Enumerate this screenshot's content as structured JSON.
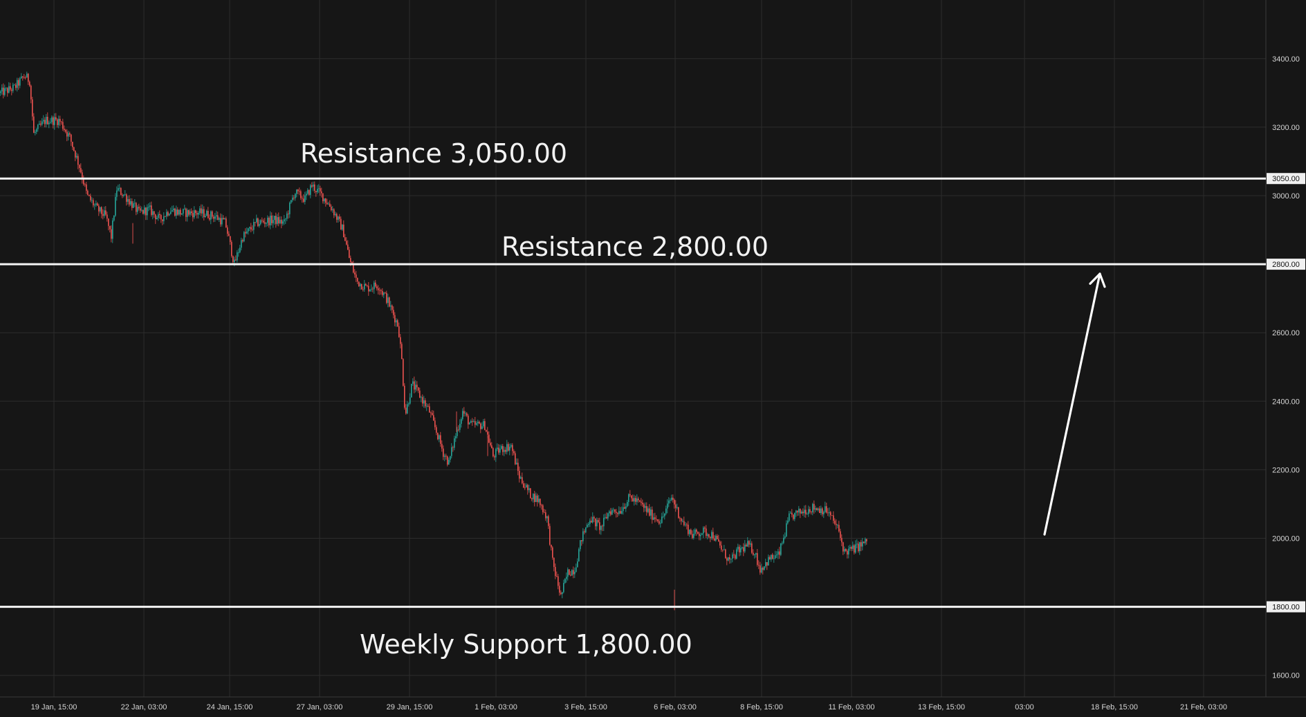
{
  "chart_data": {
    "type": "candlestick",
    "title": "",
    "xlabel": "",
    "ylabel": "",
    "grid": true,
    "ylim": [
      1540,
      3560
    ],
    "y_ticks": [
      "3400.00",
      "3200.00",
      "3000.00",
      "2600.00",
      "2400.00",
      "2200.00",
      "2000.00",
      "1600.00"
    ],
    "x_ticks": [
      "19 Jan, 15:00",
      "22 Jan, 03:00",
      "24 Jan, 15:00",
      "27 Jan, 03:00",
      "29 Jan, 15:00",
      "1 Feb, 03:00",
      "3 Feb, 15:00",
      "6 Feb, 03:00",
      "8 Feb, 15:00",
      "11 Feb, 03:00",
      "13 Feb, 15:00",
      "03:00",
      "18 Feb, 15:00",
      "21 Feb, 03:00"
    ],
    "levels": [
      {
        "value": 3050,
        "badge": "3050.00",
        "label": "Resistance 3,050.00"
      },
      {
        "value": 2800,
        "badge": "2800.00",
        "label": "Resistance 2,800.00"
      },
      {
        "value": 1800,
        "badge": "1800.00",
        "label": "Weekly Support 1,800.00"
      }
    ],
    "price_path": [
      [
        0,
        3300
      ],
      [
        20,
        3315
      ],
      [
        35,
        3350
      ],
      [
        42,
        3335
      ],
      [
        48,
        3180
      ],
      [
        65,
        3220
      ],
      [
        85,
        3220
      ],
      [
        100,
        3170
      ],
      [
        115,
        3080
      ],
      [
        125,
        3000
      ],
      [
        140,
        2960
      ],
      [
        152,
        2940
      ],
      [
        160,
        2880
      ],
      [
        168,
        3020
      ],
      [
        180,
        3000
      ],
      [
        200,
        2950
      ],
      [
        215,
        2960
      ],
      [
        230,
        2930
      ],
      [
        245,
        2960
      ],
      [
        260,
        2950
      ],
      [
        290,
        2950
      ],
      [
        310,
        2940
      ],
      [
        325,
        2920
      ],
      [
        338,
        2800
      ],
      [
        350,
        2880
      ],
      [
        370,
        2920
      ],
      [
        395,
        2930
      ],
      [
        410,
        2920
      ],
      [
        425,
        3010
      ],
      [
        440,
        2990
      ],
      [
        450,
        3030
      ],
      [
        465,
        3000
      ],
      [
        480,
        2960
      ],
      [
        495,
        2900
      ],
      [
        505,
        2810
      ],
      [
        515,
        2750
      ],
      [
        530,
        2730
      ],
      [
        545,
        2740
      ],
      [
        558,
        2700
      ],
      [
        575,
        2620
      ],
      [
        580,
        2520
      ],
      [
        585,
        2360
      ],
      [
        595,
        2450
      ],
      [
        605,
        2420
      ],
      [
        620,
        2370
      ],
      [
        632,
        2300
      ],
      [
        640,
        2250
      ],
      [
        648,
        2220
      ],
      [
        655,
        2280
      ],
      [
        668,
        2370
      ],
      [
        680,
        2330
      ],
      [
        700,
        2330
      ],
      [
        712,
        2240
      ],
      [
        722,
        2260
      ],
      [
        738,
        2270
      ],
      [
        750,
        2180
      ],
      [
        765,
        2130
      ],
      [
        778,
        2110
      ],
      [
        790,
        2060
      ],
      [
        798,
        1930
      ],
      [
        810,
        1830
      ],
      [
        820,
        1900
      ],
      [
        830,
        1910
      ],
      [
        840,
        2000
      ],
      [
        852,
        2060
      ],
      [
        868,
        2030
      ],
      [
        880,
        2080
      ],
      [
        895,
        2080
      ],
      [
        910,
        2120
      ],
      [
        925,
        2100
      ],
      [
        940,
        2070
      ],
      [
        955,
        2050
      ],
      [
        970,
        2120
      ],
      [
        985,
        2050
      ],
      [
        1000,
        2010
      ],
      [
        1015,
        2020
      ],
      [
        1030,
        2010
      ],
      [
        1045,
        1960
      ],
      [
        1055,
        1930
      ],
      [
        1065,
        1960
      ],
      [
        1080,
        1980
      ],
      [
        1090,
        1960
      ],
      [
        1098,
        1910
      ],
      [
        1112,
        1940
      ],
      [
        1125,
        1950
      ],
      [
        1140,
        2060
      ],
      [
        1160,
        2080
      ],
      [
        1175,
        2090
      ],
      [
        1195,
        2080
      ],
      [
        1210,
        2030
      ],
      [
        1220,
        1960
      ],
      [
        1235,
        1970
      ],
      [
        1252,
        1990
      ]
    ],
    "projection": [
      [
        1252,
        2000
      ],
      [
        1320,
        2780
      ]
    ]
  }
}
